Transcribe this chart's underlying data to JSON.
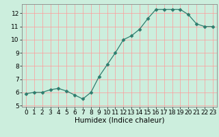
{
  "x": [
    0,
    1,
    2,
    3,
    4,
    5,
    6,
    7,
    8,
    9,
    10,
    11,
    12,
    13,
    14,
    15,
    16,
    17,
    18,
    19,
    20,
    21,
    22,
    23
  ],
  "y": [
    5.9,
    6.0,
    6.0,
    6.2,
    6.3,
    6.1,
    5.8,
    5.5,
    6.0,
    7.2,
    8.1,
    9.0,
    10.0,
    10.3,
    10.8,
    11.6,
    12.3,
    12.3,
    12.3,
    12.3,
    11.9,
    11.2,
    11.0,
    11.0
  ],
  "line_color": "#2e7d6e",
  "marker": "D",
  "marker_size": 2.5,
  "bg_color": "#cceedd",
  "grid_color": "#ff9999",
  "xlabel": "Humidex (Indice chaleur)",
  "xlim": [
    -0.5,
    23.5
  ],
  "ylim": [
    4.9,
    12.7
  ],
  "yticks": [
    5,
    6,
    7,
    8,
    9,
    10,
    11,
    12
  ],
  "xtick_labels": [
    "0",
    "1",
    "2",
    "3",
    "4",
    "5",
    "6",
    "7",
    "8",
    "9",
    "10",
    "11",
    "12",
    "13",
    "14",
    "15",
    "16",
    "17",
    "18",
    "19",
    "20",
    "21",
    "22",
    "23"
  ],
  "xlabel_fontsize": 7.5,
  "tick_fontsize": 6.5
}
